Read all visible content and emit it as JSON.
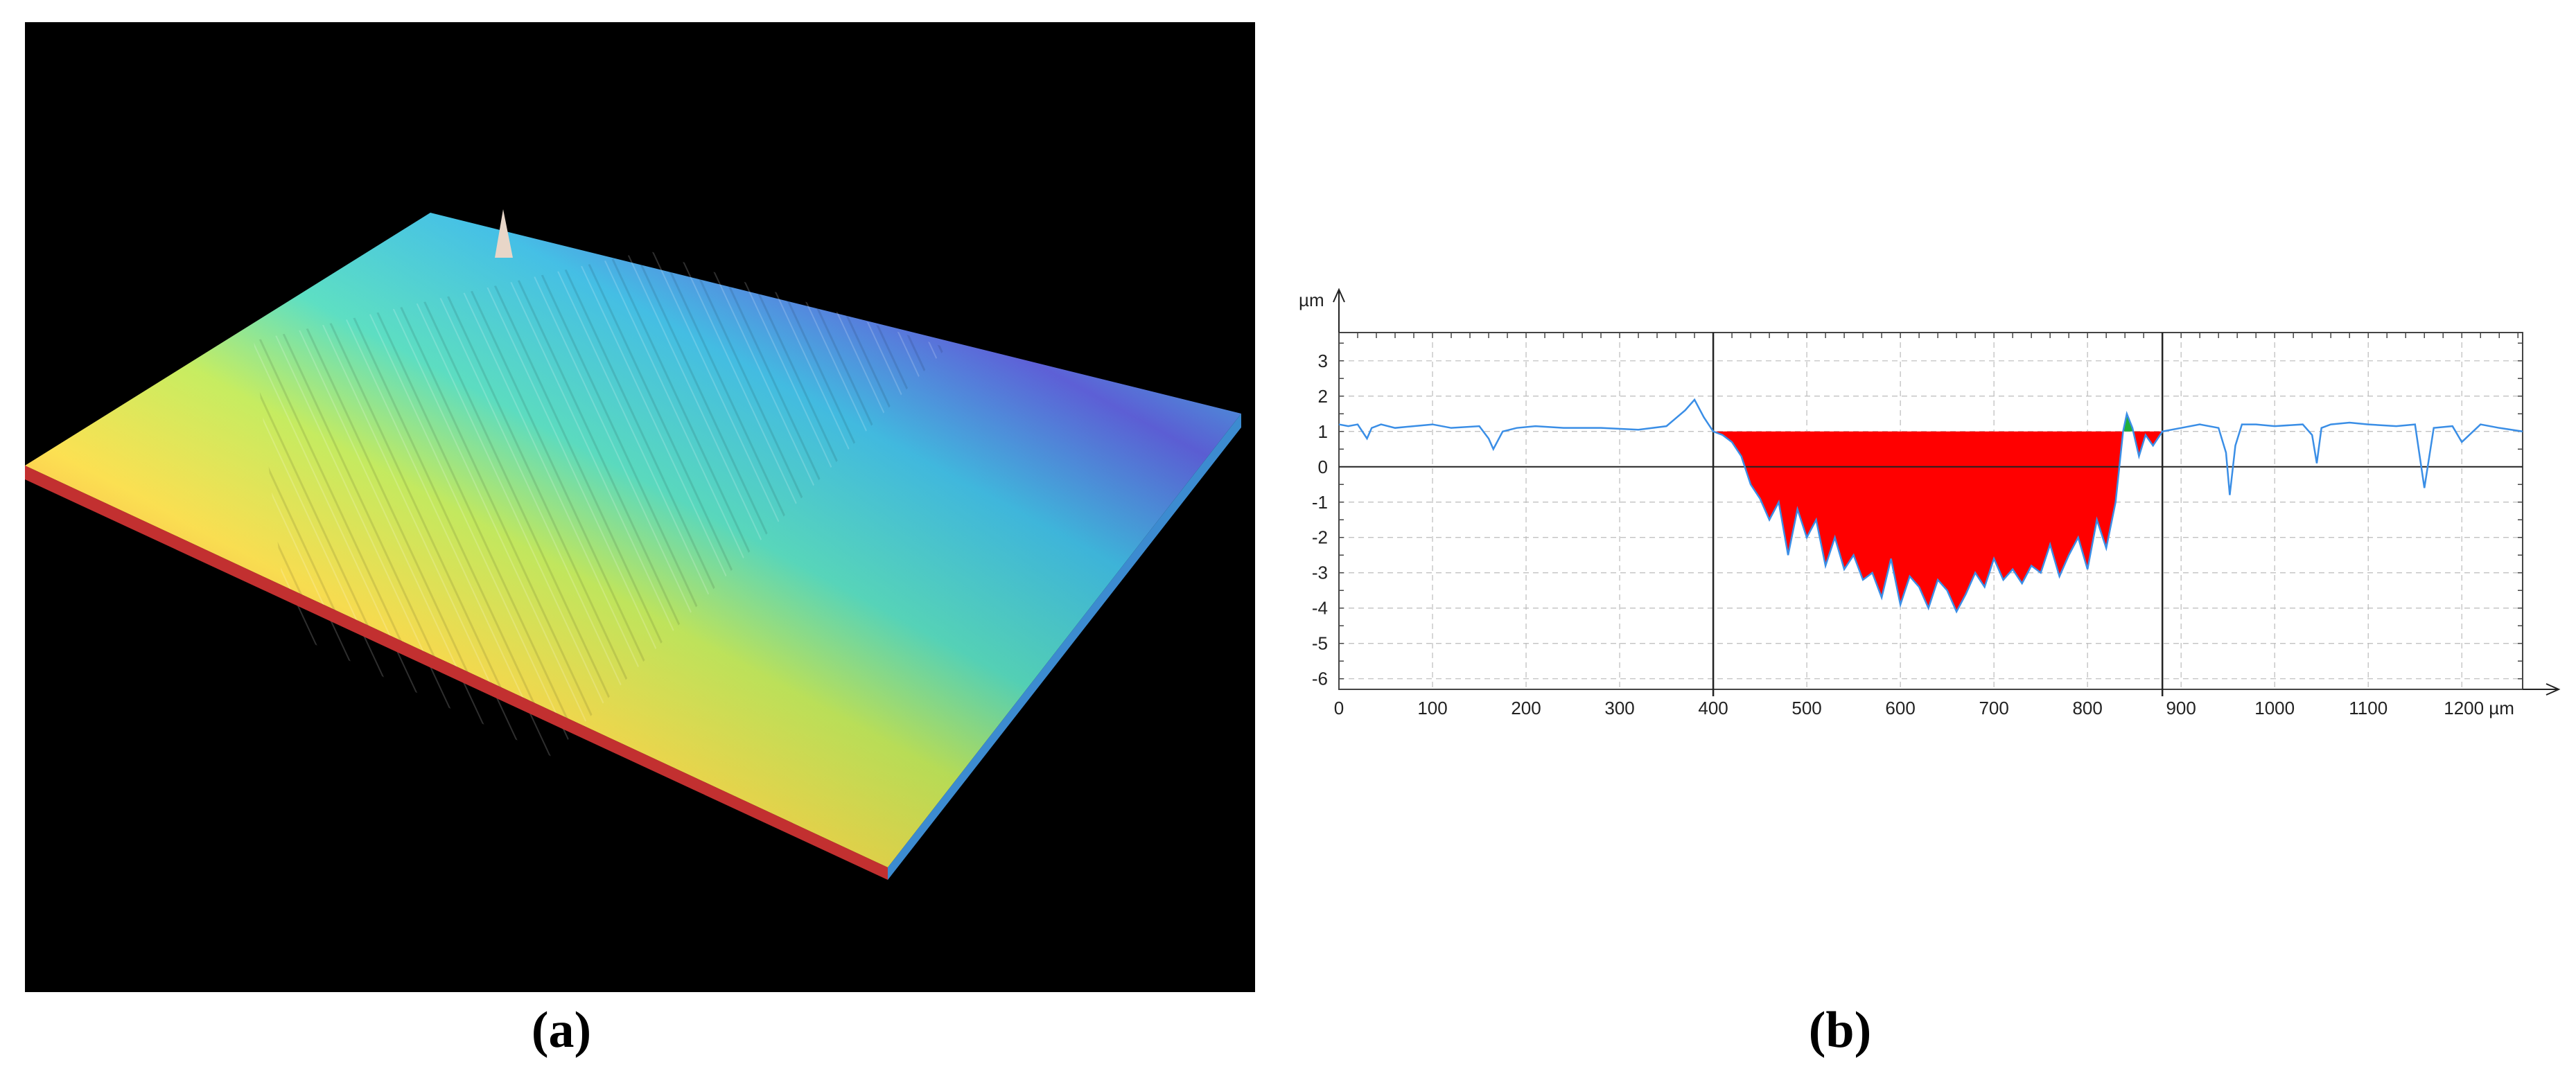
{
  "captions": {
    "a": "(a)",
    "b": "(b)"
  },
  "colors": {
    "profile_line": "#3a8ee6",
    "fill_valley": "#ff0000",
    "fill_peak": "#1fae3a",
    "cursor": "#222222",
    "background_a": "#000000"
  },
  "surface_3d": {
    "description_colormap": [
      "#ff4040",
      "#ff9a3c",
      "#ffe14a",
      "#c8f05a",
      "#4fe0c8",
      "#39bde8",
      "#5a5fe0"
    ]
  },
  "chart_data": {
    "type": "line",
    "yunit": "µm",
    "xunit": "µm",
    "xlim": [
      0,
      1265
    ],
    "ylim": [
      -6.3,
      3.8
    ],
    "xticks": [
      0,
      100,
      200,
      300,
      400,
      500,
      600,
      700,
      800,
      900,
      1000,
      1100,
      1200
    ],
    "xtick_labels": [
      "0",
      "100",
      "200",
      "300",
      "400",
      "500",
      "600",
      "700",
      "800",
      "900",
      "1000",
      "1100",
      "1200 µm"
    ],
    "yticks": [
      3,
      2,
      1,
      0,
      -1,
      -2,
      -3,
      -4,
      -5,
      -6
    ],
    "ytick_labels": [
      "3",
      "2",
      "1",
      "0",
      "-1",
      "-2",
      "-3",
      "-4",
      "-5",
      "-6"
    ],
    "cursors_x": [
      400,
      880
    ],
    "reference_level": 1.0,
    "grid": true,
    "profile": {
      "x": [
        0,
        10,
        20,
        30,
        35,
        45,
        60,
        80,
        100,
        120,
        150,
        160,
        165,
        175,
        190,
        210,
        240,
        280,
        320,
        350,
        370,
        380,
        390,
        400,
        410,
        420,
        430,
        440,
        450,
        460,
        470,
        480,
        490,
        500,
        510,
        520,
        530,
        540,
        550,
        560,
        570,
        580,
        590,
        600,
        610,
        620,
        630,
        640,
        650,
        660,
        670,
        680,
        690,
        700,
        710,
        720,
        730,
        740,
        750,
        760,
        770,
        780,
        790,
        800,
        810,
        820,
        830,
        838,
        842,
        848,
        855,
        862,
        870,
        880,
        900,
        920,
        940,
        948,
        952,
        958,
        965,
        980,
        1000,
        1030,
        1040,
        1045,
        1050,
        1060,
        1080,
        1100,
        1130,
        1150,
        1155,
        1160,
        1170,
        1190,
        1200,
        1220,
        1240,
        1265
      ],
      "y": [
        1.2,
        1.15,
        1.2,
        0.8,
        1.1,
        1.2,
        1.1,
        1.15,
        1.2,
        1.1,
        1.15,
        0.8,
        0.5,
        1.0,
        1.1,
        1.15,
        1.1,
        1.1,
        1.05,
        1.15,
        1.6,
        1.9,
        1.4,
        1.0,
        0.9,
        0.7,
        0.3,
        -0.5,
        -0.9,
        -1.5,
        -1.0,
        -2.5,
        -1.2,
        -2.0,
        -1.5,
        -2.8,
        -2.0,
        -2.9,
        -2.5,
        -3.2,
        -3.0,
        -3.7,
        -2.6,
        -3.9,
        -3.1,
        -3.4,
        -4.0,
        -3.2,
        -3.5,
        -4.1,
        -3.6,
        -3.0,
        -3.4,
        -2.6,
        -3.2,
        -2.9,
        -3.3,
        -2.8,
        -3.0,
        -2.2,
        -3.1,
        -2.5,
        -2.0,
        -2.9,
        -1.5,
        -2.3,
        -1.0,
        1.0,
        1.5,
        1.1,
        0.3,
        0.9,
        0.6,
        1.0,
        1.1,
        1.2,
        1.1,
        0.4,
        -0.8,
        0.6,
        1.2,
        1.2,
        1.15,
        1.2,
        0.9,
        0.1,
        1.1,
        1.2,
        1.25,
        1.2,
        1.15,
        1.2,
        0.3,
        -0.6,
        1.1,
        1.15,
        0.7,
        1.2,
        1.1,
        1.0
      ]
    },
    "fills": [
      {
        "kind": "valley",
        "x_from": 400,
        "x_to": 838
      },
      {
        "kind": "peak",
        "x_from": 838,
        "x_to": 848
      },
      {
        "kind": "valley",
        "x_from": 848,
        "x_to": 880
      }
    ]
  }
}
